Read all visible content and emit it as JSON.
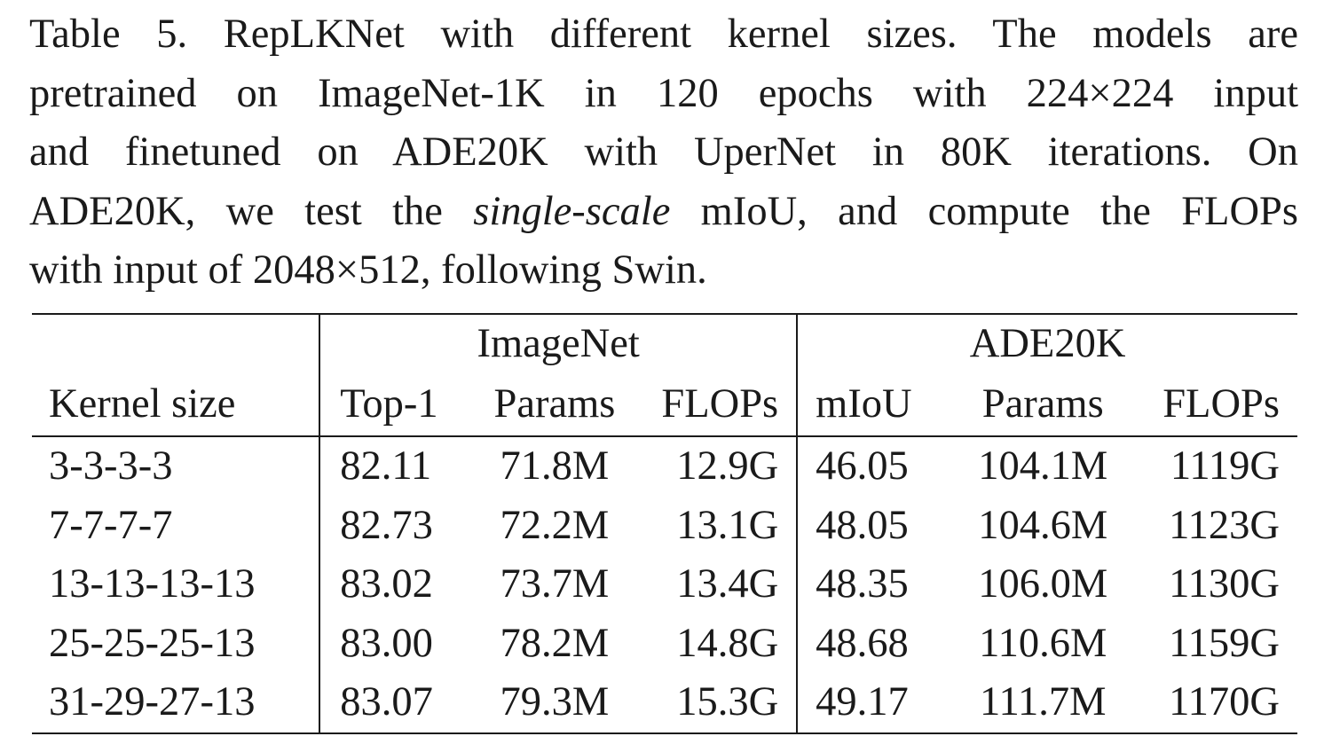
{
  "caption": {
    "lines": [
      "Table 5. RepLKNet with different kernel sizes. The models are",
      "pretrained on ImageNet-1K in 120 epochs with 224×224 input",
      "and finetuned on ADE20K with UperNet in 80K iterations. On"
    ],
    "line4_pre": "ADE20K, we test the ",
    "line4_em": "single-scale",
    "line4_post": " mIoU, and compute the FLOPs",
    "line5": "with input of 2048×512, following Swin."
  },
  "table": {
    "group_imagenet": "ImageNet",
    "group_ade20k": "ADE20K",
    "headers": {
      "kernel": "Kernel size",
      "top1": "Top-1",
      "iparams": "Params",
      "iflops": "FLOPs",
      "miou": "mIoU",
      "aparams": "Params",
      "aflops": "FLOPs"
    },
    "rows": [
      {
        "kernel": "3-3-3-3",
        "top1": "82.11",
        "iparams": "71.8M",
        "iflops": "12.9G",
        "miou": "46.05",
        "aparams": "104.1M",
        "aflops": "1119G"
      },
      {
        "kernel": "7-7-7-7",
        "top1": "82.73",
        "iparams": "72.2M",
        "iflops": "13.1G",
        "miou": "48.05",
        "aparams": "104.6M",
        "aflops": "1123G"
      },
      {
        "kernel": "13-13-13-13",
        "top1": "83.02",
        "iparams": "73.7M",
        "iflops": "13.4G",
        "miou": "48.35",
        "aparams": "106.0M",
        "aflops": "1130G"
      },
      {
        "kernel": "25-25-25-13",
        "top1": "83.00",
        "iparams": "78.2M",
        "iflops": "14.8G",
        "miou": "48.68",
        "aparams": "110.6M",
        "aflops": "1159G"
      },
      {
        "kernel": "31-29-27-13",
        "top1": "83.07",
        "iparams": "79.3M",
        "iflops": "15.3G",
        "miou": "49.17",
        "aparams": "111.7M",
        "aflops": "1170G"
      }
    ]
  }
}
